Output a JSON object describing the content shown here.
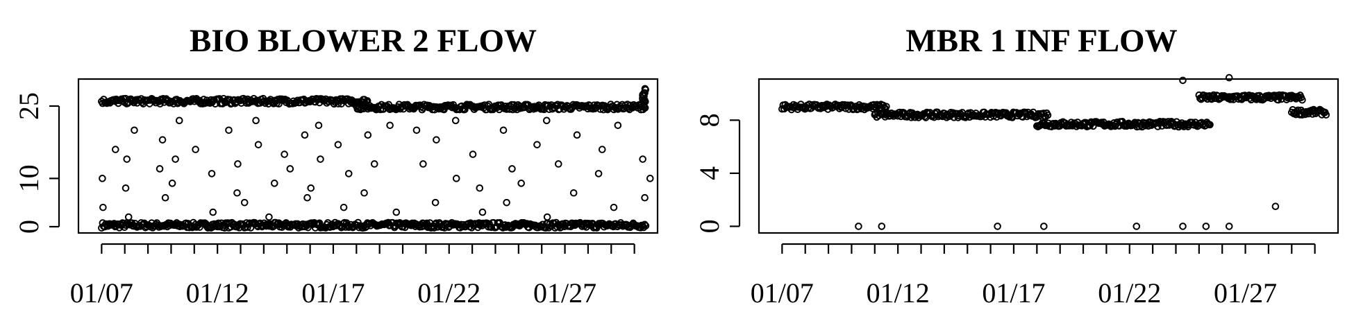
{
  "chart_data": [
    {
      "type": "scatter",
      "title": "BIO BLOWER 2 FLOW",
      "xlabel": "",
      "ylabel": "",
      "x_tick_labels": [
        "01/07",
        "01/12",
        "01/17",
        "01/22",
        "01/27"
      ],
      "x_tick_days": [
        7,
        12,
        17,
        22,
        27
      ],
      "x_minor_tick_days": [
        7,
        8,
        9,
        10,
        11,
        12,
        13,
        14,
        15,
        16,
        17,
        18,
        19,
        20,
        21,
        22,
        23,
        24,
        25,
        26,
        27,
        28,
        29,
        30
      ],
      "xlim": [
        "01/06",
        "01/31"
      ],
      "y_ticks": [
        0,
        10,
        25
      ],
      "y_tick_labels": [
        "0",
        "10",
        "25"
      ],
      "ylim": [
        -1.3,
        30.6
      ],
      "grid": false,
      "point_style": "open-circle",
      "x_range": [
        "01/07",
        "01/30"
      ],
      "series": [
        {
          "description_of_bands": "dense band near 0 for entire period",
          "level_segments": [
            {
              "from": "01/07",
              "to": "01/30",
              "value": 0.3
            }
          ]
        },
        {
          "level_segments": [
            {
              "from": "01/07",
              "to": "01/18",
              "value": 26
            },
            {
              "from": "01/18",
              "to": "01/30",
              "value": 24.8
            }
          ],
          "peak": {
            "at": "01/30",
            "value": 29
          }
        },
        {
          "scatter_points": [
            [
              "01/07",
              10
            ],
            [
              "01/07",
              16
            ],
            [
              "01/07",
              4
            ],
            [
              "01/08",
              20
            ],
            [
              "01/08",
              14
            ],
            [
              "01/08",
              8
            ],
            [
              "01/08",
              2
            ],
            [
              "01/09",
              12
            ],
            [
              "01/09",
              18
            ],
            [
              "01/09",
              6
            ],
            [
              "01/10",
              14
            ],
            [
              "01/10",
              9
            ],
            [
              "01/10",
              22
            ],
            [
              "01/11",
              16
            ],
            [
              "01/11",
              3
            ],
            [
              "01/11",
              11
            ],
            [
              "01/12",
              20
            ],
            [
              "01/12",
              7
            ],
            [
              "01/12",
              13
            ],
            [
              "01/13",
              17
            ],
            [
              "01/13",
              5
            ],
            [
              "01/13",
              22
            ],
            [
              "01/14",
              9
            ],
            [
              "01/14",
              15
            ],
            [
              "01/14",
              2
            ],
            [
              "01/15",
              19
            ],
            [
              "01/15",
              12
            ],
            [
              "01/15",
              6
            ],
            [
              "01/16",
              21
            ],
            [
              "01/16",
              14
            ],
            [
              "01/16",
              8
            ],
            [
              "01/17",
              17
            ],
            [
              "01/17",
              4
            ],
            [
              "01/17",
              11
            ],
            [
              "01/18",
              13
            ],
            [
              "01/18",
              7
            ],
            [
              "01/18",
              19
            ],
            [
              "01/19",
              3
            ],
            [
              "01/19",
              21
            ],
            [
              "01/20",
              13
            ],
            [
              "01/20",
              20
            ],
            [
              "01/21",
              5
            ],
            [
              "01/21",
              18
            ],
            [
              "01/22",
              10
            ],
            [
              "01/22",
              22
            ],
            [
              "01/23",
              15
            ],
            [
              "01/23",
              3
            ],
            [
              "01/23",
              8
            ],
            [
              "01/24",
              20
            ],
            [
              "01/24",
              12
            ],
            [
              "01/24",
              5
            ],
            [
              "01/25",
              17
            ],
            [
              "01/25",
              9
            ],
            [
              "01/26",
              22
            ],
            [
              "01/26",
              13
            ],
            [
              "01/26",
              2
            ],
            [
              "01/27",
              19
            ],
            [
              "01/27",
              7
            ],
            [
              "01/28",
              16
            ],
            [
              "01/28",
              11
            ],
            [
              "01/29",
              21
            ],
            [
              "01/29",
              4
            ],
            [
              "01/30",
              14
            ],
            [
              "01/30",
              6
            ],
            [
              "01/30",
              10
            ]
          ]
        }
      ]
    },
    {
      "type": "scatter",
      "title": "MBR 1 INF FLOW",
      "xlabel": "",
      "ylabel": "",
      "x_tick_labels": [
        "01/07",
        "01/12",
        "01/17",
        "01/22",
        "01/27"
      ],
      "x_tick_days": [
        7,
        12,
        17,
        22,
        27
      ],
      "x_minor_tick_days": [
        7,
        8,
        9,
        10,
        11,
        12,
        13,
        14,
        15,
        16,
        17,
        18,
        19,
        20,
        21,
        22,
        23,
        24,
        25,
        26,
        27,
        28,
        29,
        30
      ],
      "xlim": [
        "01/06",
        "01/31"
      ],
      "y_ticks": [
        0,
        4,
        8
      ],
      "y_tick_labels": [
        "0",
        "4",
        "8"
      ],
      "ylim": [
        -0.5,
        11.1
      ],
      "grid": false,
      "point_style": "open-circle",
      "x_range": [
        "01/07",
        "01/30"
      ],
      "series": [
        {
          "level_segments": [
            {
              "from": "01/07",
              "to": "01/11",
              "value": 9.0
            },
            {
              "from": "01/11",
              "to": "01/18",
              "value": 8.4
            },
            {
              "from": "01/18",
              "to": "01/25",
              "value": 7.7
            },
            {
              "from": "01/25",
              "to": "01/29",
              "value": 9.7
            },
            {
              "from": "01/29",
              "to": "01/30",
              "value": 8.6
            }
          ],
          "outliers": [
            [
              "01/10",
              0
            ],
            [
              "01/11",
              0
            ],
            [
              "01/16",
              0
            ],
            [
              "01/18",
              0
            ],
            [
              "01/22",
              0
            ],
            [
              "01/24",
              0
            ],
            [
              "01/24",
              11.0
            ],
            [
              "01/25",
              0
            ],
            [
              "01/26",
              0
            ],
            [
              "01/26",
              11.2
            ],
            [
              "01/28",
              1.5
            ]
          ]
        }
      ]
    }
  ]
}
